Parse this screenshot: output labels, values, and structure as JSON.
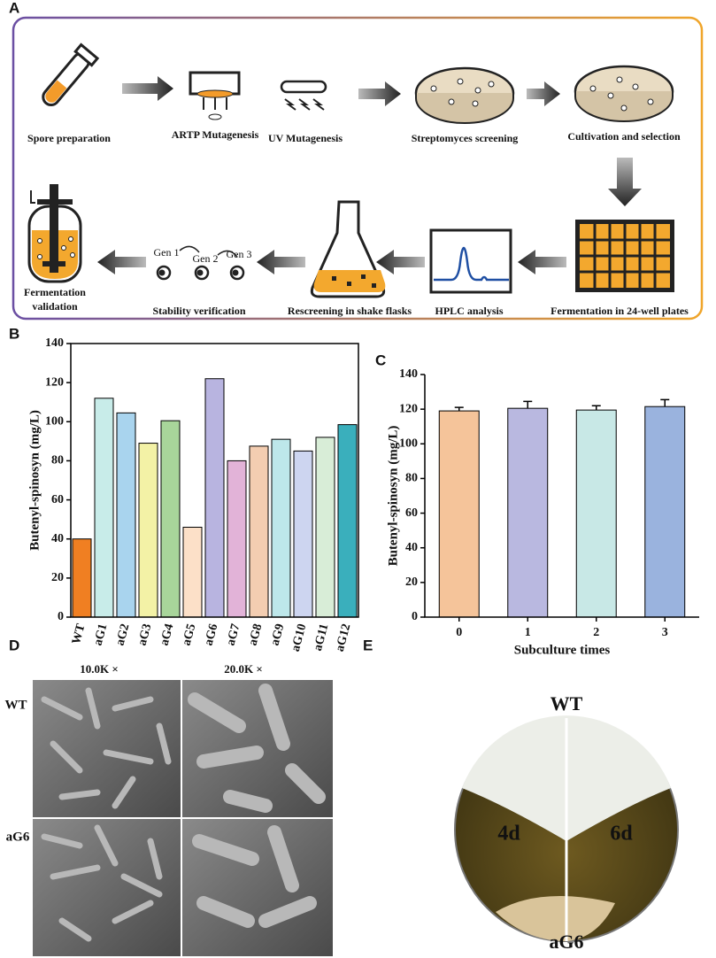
{
  "panels": {
    "a": "A",
    "b": "B",
    "c": "C",
    "d": "D",
    "e": "E"
  },
  "workflow": {
    "spore": "Spore preparation",
    "artp": "ARTP Mutagenesis",
    "uv": "UV Mutagenesis",
    "screening": "Streptomyces screening",
    "cultivation": "Cultivation and selection",
    "plates": "Fermentation in 24-well plates",
    "hplc": "HPLC analysis",
    "flasks": "Rescreening in shake flasks",
    "stability": "Stability verification",
    "validation": [
      "Fermentation",
      "validation"
    ],
    "gens": [
      "Gen 1",
      "Gen 2",
      "Gen 3"
    ]
  },
  "chart_data": [
    {
      "type": "bar",
      "ylabel": "Butenyl-spinosyn (mg/L)",
      "categories": [
        "WT",
        "aG1",
        "aG2",
        "aG3",
        "aG4",
        "aG5",
        "aG6",
        "aG7",
        "aG8",
        "aG9",
        "aG10",
        "aG11",
        "aG12"
      ],
      "values": [
        40,
        112,
        104.5,
        89,
        100.5,
        46,
        122,
        80,
        87.5,
        91,
        85,
        92,
        98.5
      ],
      "colors": [
        "#f07f22",
        "#c8ece9",
        "#a9d4ee",
        "#f3f2a6",
        "#a8d59a",
        "#fce0c8",
        "#b8b4e0",
        "#e2b3d8",
        "#f3cdb1",
        "#bde7ea",
        "#cdd5f0",
        "#d8edd7",
        "#3aafbc"
      ],
      "ylim": [
        0,
        140
      ],
      "yticks": [
        0,
        20,
        40,
        60,
        80,
        100,
        120,
        140
      ]
    },
    {
      "type": "bar",
      "ylabel": "Butenyl-spinosyn (mg/L)",
      "xlabel": "Subculture times",
      "categories": [
        "0",
        "1",
        "2",
        "3"
      ],
      "values": [
        119,
        120.5,
        119.5,
        121.5
      ],
      "errors": [
        2,
        4,
        2.5,
        4
      ],
      "colors": [
        "#f5c49a",
        "#b9b8e0",
        "#c8e8e6",
        "#9ab3de"
      ],
      "ylim": [
        0,
        140
      ],
      "yticks": [
        0,
        20,
        40,
        60,
        80,
        100,
        120,
        140
      ]
    }
  ],
  "sem": {
    "columns": [
      "10.0K ×",
      "20.0K ×"
    ],
    "rows": [
      "WT",
      "aG6"
    ]
  },
  "plate": {
    "top": "WT",
    "bottom": "aG6",
    "left": "4d",
    "right": "6d"
  }
}
